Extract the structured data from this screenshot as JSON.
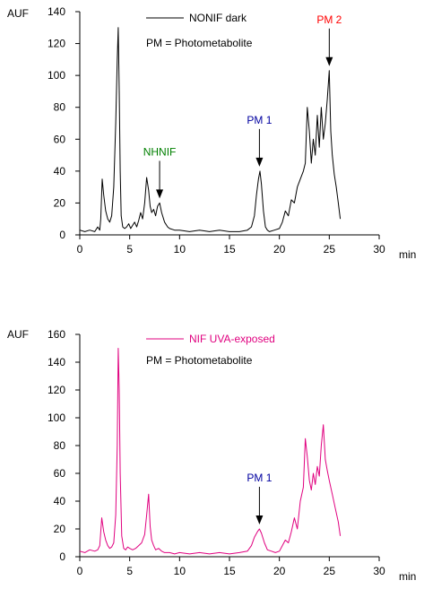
{
  "chart_data": [
    {
      "type": "line",
      "ylabel": "AUF",
      "xlabel": "min",
      "xlim": [
        0,
        30
      ],
      "ylim": [
        0,
        140
      ],
      "x_ticks": [
        0,
        5,
        10,
        15,
        20,
        25,
        30
      ],
      "y_ticks": [
        0,
        20,
        40,
        60,
        80,
        100,
        120,
        140
      ],
      "legend_position": "top-center",
      "note": "PM = Photometabolite",
      "series": [
        {
          "name": "NONIF dark",
          "color": "#000000",
          "x": [
            0.0,
            0.5,
            1.0,
            1.5,
            1.8,
            2.0,
            2.1,
            2.25,
            2.4,
            2.6,
            2.8,
            3.0,
            3.2,
            3.4,
            3.6,
            3.75,
            3.85,
            3.95,
            4.05,
            4.15,
            4.3,
            4.5,
            4.7,
            4.9,
            5.1,
            5.3,
            5.5,
            5.7,
            5.9,
            6.1,
            6.3,
            6.5,
            6.7,
            6.9,
            7.05,
            7.2,
            7.4,
            7.6,
            7.8,
            8.0,
            8.2,
            8.5,
            8.8,
            9.0,
            9.5,
            10.0,
            11.0,
            12.0,
            13.0,
            14.0,
            15.0,
            16.0,
            16.8,
            17.2,
            17.5,
            17.7,
            17.9,
            18.05,
            18.2,
            18.4,
            18.6,
            18.8,
            19.0,
            19.5,
            20.0,
            20.3,
            20.6,
            20.9,
            21.2,
            21.5,
            21.8,
            22.1,
            22.4,
            22.6,
            22.8,
            23.0,
            23.2,
            23.4,
            23.6,
            23.8,
            24.0,
            24.2,
            24.4,
            24.6,
            24.8,
            25.0,
            25.15,
            25.3,
            25.5,
            25.7,
            25.9,
            26.1
          ],
          "values": [
            3,
            2,
            3,
            2,
            5,
            3,
            10,
            35,
            25,
            15,
            10,
            8,
            12,
            30,
            70,
            110,
            130,
            90,
            40,
            12,
            5,
            4,
            5,
            7,
            4,
            6,
            8,
            5,
            9,
            14,
            10,
            20,
            36,
            28,
            18,
            14,
            16,
            12,
            18,
            20,
            14,
            8,
            5,
            4,
            3,
            3,
            2,
            3,
            2,
            3,
            2,
            2,
            3,
            5,
            12,
            25,
            35,
            40,
            32,
            15,
            5,
            3,
            2,
            3,
            4,
            8,
            15,
            12,
            22,
            20,
            30,
            35,
            40,
            45,
            80,
            65,
            45,
            60,
            50,
            75,
            55,
            80,
            60,
            70,
            85,
            103,
            65,
            50,
            38,
            30,
            20,
            10
          ]
        }
      ],
      "annotations": [
        {
          "label": "NHNIF",
          "color": "#008000",
          "x": 8.0,
          "y": 20
        },
        {
          "label": "PM 1",
          "color": "#0000a0",
          "x": 18.0,
          "y": 40
        },
        {
          "label": "PM 2",
          "color": "#ff0000",
          "x": 25.0,
          "y": 103
        }
      ]
    },
    {
      "type": "line",
      "ylabel": "AUF",
      "xlabel": "min",
      "xlim": [
        0,
        30
      ],
      "ylim": [
        0,
        160
      ],
      "x_ticks": [
        0,
        5,
        10,
        15,
        20,
        25,
        30
      ],
      "y_ticks": [
        0,
        20,
        40,
        60,
        80,
        100,
        120,
        140,
        160
      ],
      "legend_position": "top-center",
      "note": "PM = Photometabolite",
      "series": [
        {
          "name": "NIF UVA-exposed",
          "color": "#e0007f",
          "x": [
            0.0,
            0.5,
            1.0,
            1.5,
            1.8,
            2.0,
            2.2,
            2.4,
            2.6,
            2.8,
            3.0,
            3.2,
            3.4,
            3.6,
            3.75,
            3.85,
            3.95,
            4.05,
            4.2,
            4.4,
            4.6,
            4.8,
            5.0,
            5.3,
            5.6,
            5.9,
            6.2,
            6.5,
            6.7,
            6.9,
            7.05,
            7.2,
            7.4,
            7.6,
            7.9,
            8.2,
            8.5,
            9.0,
            9.5,
            10.0,
            11.0,
            12.0,
            13.0,
            14.0,
            15.0,
            16.0,
            16.8,
            17.2,
            17.5,
            17.8,
            18.0,
            18.2,
            18.5,
            18.8,
            19.2,
            19.6,
            20.0,
            20.3,
            20.6,
            20.9,
            21.2,
            21.5,
            21.8,
            22.1,
            22.4,
            22.6,
            22.8,
            23.0,
            23.2,
            23.4,
            23.6,
            23.8,
            24.0,
            24.2,
            24.4,
            24.6,
            24.8,
            25.0,
            25.3,
            25.6,
            25.9,
            26.1
          ],
          "values": [
            4,
            3,
            5,
            4,
            5,
            8,
            28,
            18,
            12,
            8,
            6,
            7,
            10,
            30,
            80,
            150,
            120,
            60,
            15,
            6,
            5,
            7,
            6,
            5,
            6,
            8,
            10,
            16,
            30,
            45,
            22,
            12,
            8,
            5,
            6,
            4,
            3,
            3,
            2,
            3,
            2,
            3,
            2,
            3,
            2,
            3,
            4,
            8,
            14,
            18,
            20,
            17,
            10,
            5,
            4,
            3,
            4,
            8,
            12,
            10,
            18,
            28,
            20,
            40,
            50,
            85,
            72,
            55,
            48,
            60,
            52,
            65,
            58,
            80,
            95,
            70,
            62,
            55,
            45,
            35,
            25,
            15
          ]
        }
      ],
      "annotations": [
        {
          "label": "PM 1",
          "color": "#0000a0",
          "x": 18.0,
          "y": 20
        }
      ]
    }
  ]
}
